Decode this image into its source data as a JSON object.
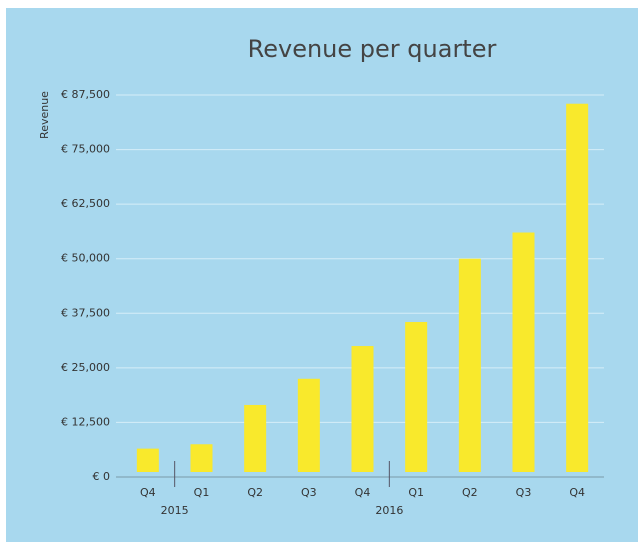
{
  "chart_data": {
    "type": "bar",
    "title": "Revenue per quarter",
    "y_label": "Revenue",
    "categories": [
      "Q4",
      "Q1",
      "Q2",
      "Q3",
      "Q4",
      "Q1",
      "Q2",
      "Q3",
      "Q4"
    ],
    "year_labels": [
      "2015",
      "2016"
    ],
    "values": [
      6500,
      7500,
      16500,
      22500,
      30000,
      35500,
      50000,
      56000,
      85500
    ],
    "color": "#f9e92c",
    "ylim": [
      0,
      87500
    ],
    "yticks": [
      {
        "value": 0,
        "label": "€ 0"
      },
      {
        "value": 12500,
        "label": "€ 12,500"
      },
      {
        "value": 25000,
        "label": "€ 25,000"
      },
      {
        "value": 37500,
        "label": "€ 37,500"
      },
      {
        "value": 50000,
        "label": "€ 50,000"
      },
      {
        "value": 62500,
        "label": "€ 62,500"
      },
      {
        "value": 75000,
        "label": "€ 75,000"
      },
      {
        "value": 87500,
        "label": "€ 87,500"
      }
    ],
    "grid": true
  }
}
